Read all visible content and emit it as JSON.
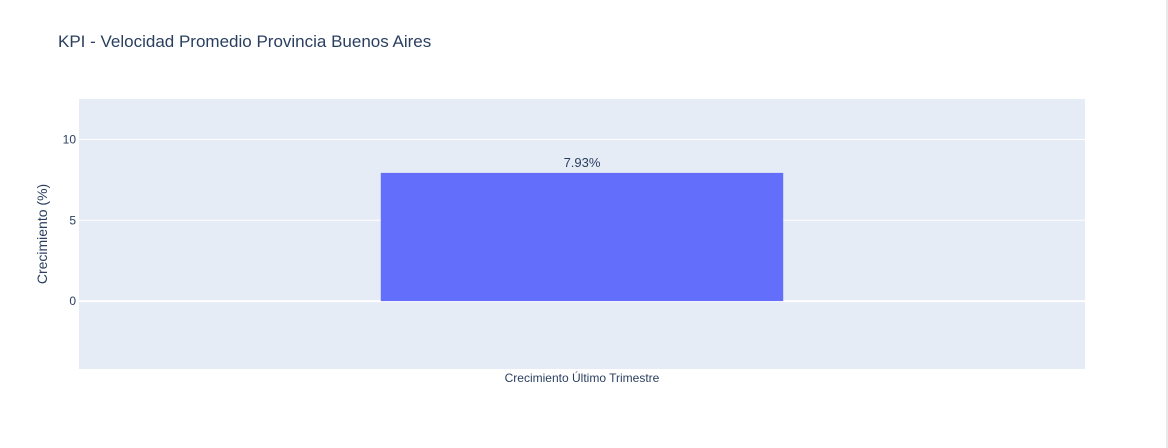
{
  "chart_data": {
    "type": "bar",
    "title": "KPI - Velocidad Promedio Provincia Buenos Aires",
    "categories": [
      "Crecimiento Último Trimestre"
    ],
    "values": [
      7.93
    ],
    "value_labels": [
      "7.93%"
    ],
    "xlabel": "",
    "ylabel": "Crecimiento (%)",
    "ylim": [
      -4.2,
      12.5
    ],
    "yticks": [
      0,
      5,
      10
    ],
    "ytick_labels": [
      "0",
      "5",
      "10"
    ],
    "grid": true,
    "colors": {
      "bar": "#636efa",
      "plot_background": "#e5ecf6",
      "grid": "#ffffff",
      "text": "#2a3f5f"
    }
  }
}
